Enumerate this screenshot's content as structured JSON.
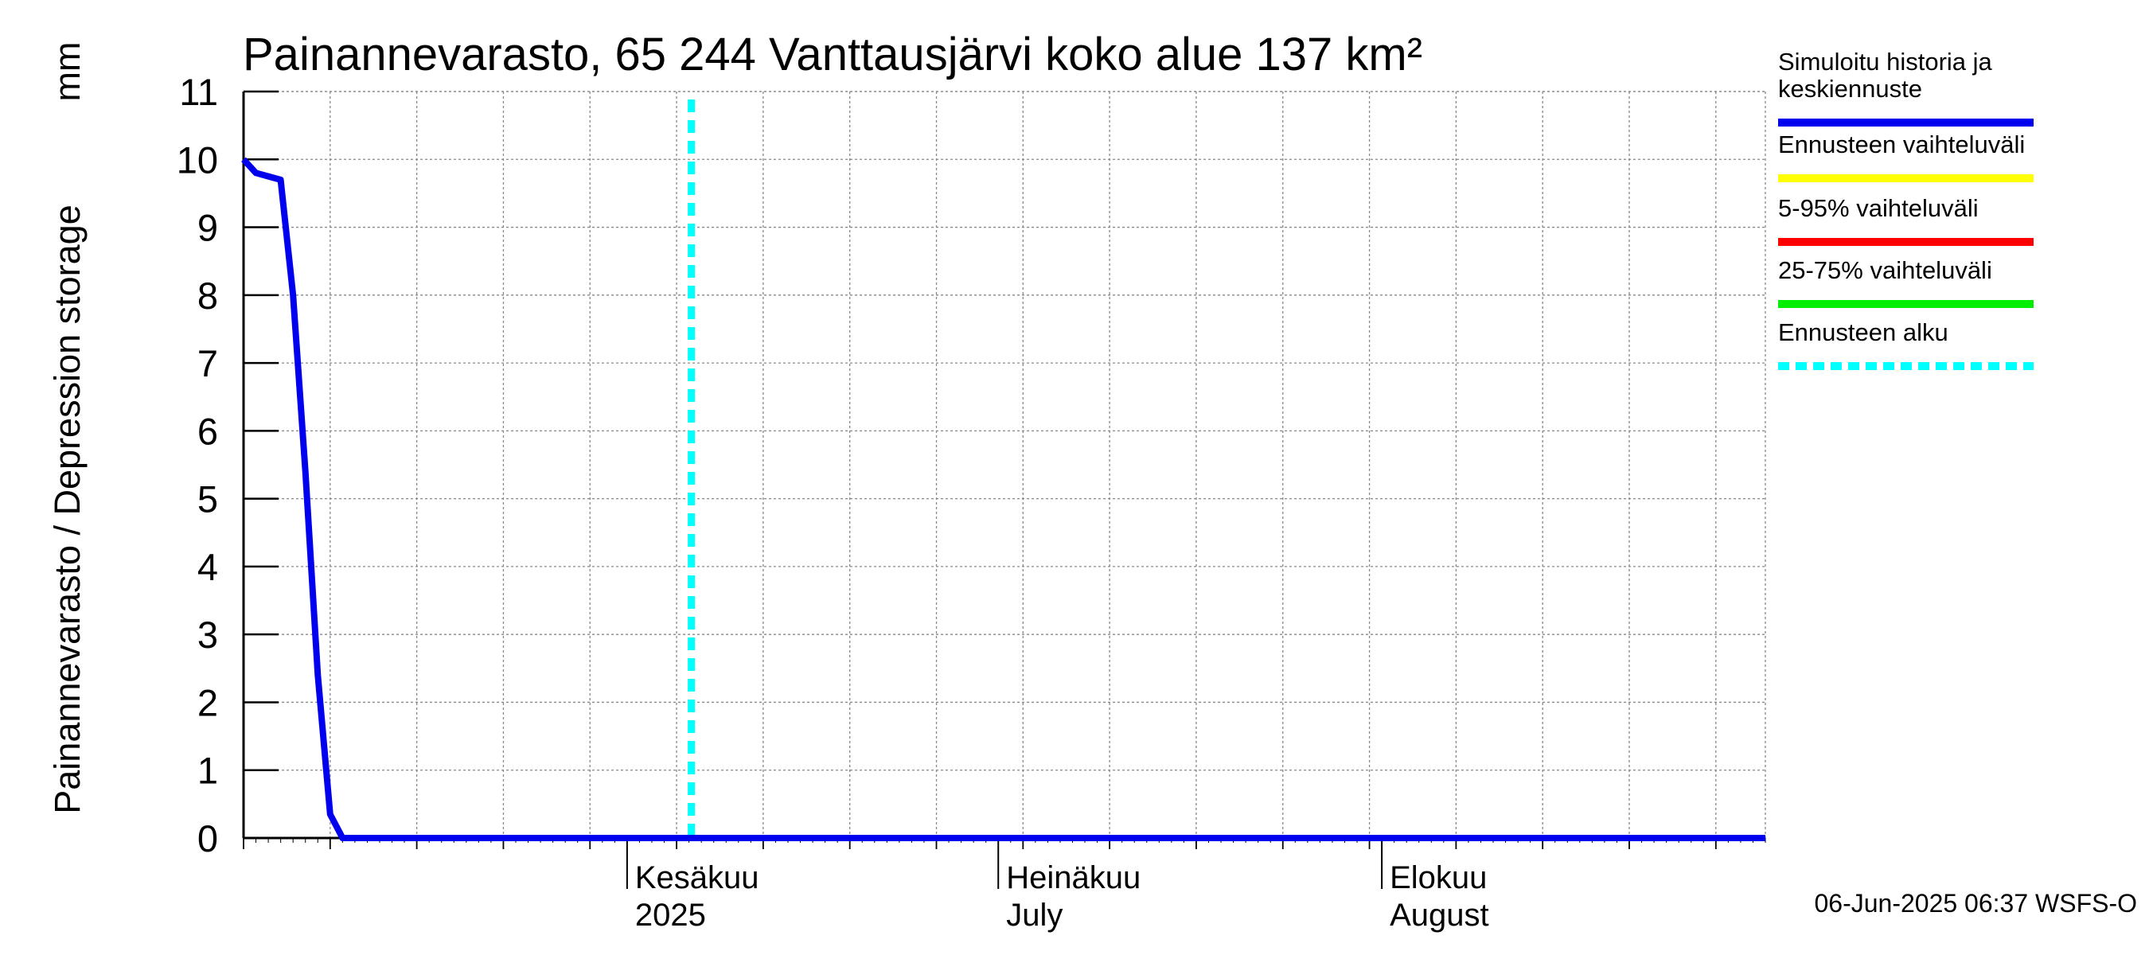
{
  "chart_data": {
    "type": "line",
    "title": "Painannevarasto, 65 244 Vanttausjärvi koko alue 137 km²",
    "ylabel": "Painannevarasto / Depression storage",
    "yunit": "mm",
    "ylim": [
      0,
      11
    ],
    "yticks": [
      "0",
      "1",
      "2",
      "3",
      "4",
      "5",
      "6",
      "7",
      "8",
      "9",
      "10",
      "11"
    ],
    "xlim": [
      "2025-05-01",
      "2025-09-01"
    ],
    "month_labels": [
      {
        "date": "2025-06-01",
        "line1": "Kesäkuu",
        "line2": "2025"
      },
      {
        "date": "2025-07-01",
        "line1": "Heinäkuu",
        "line2": "July"
      },
      {
        "date": "2025-08-01",
        "line1": "Elokuu",
        "line2": "August"
      }
    ],
    "grid": true,
    "forecast_start": "2025-06-01",
    "series": [
      {
        "name": "Simuloitu historia ja keskiennuste",
        "color": "#0000ee",
        "points": [
          [
            "2025-05-01",
            10.0
          ],
          [
            "2025-05-02",
            9.8
          ],
          [
            "2025-05-03",
            9.75
          ],
          [
            "2025-05-04",
            9.7
          ],
          [
            "2025-05-05",
            8.0
          ],
          [
            "2025-05-06",
            5.4
          ],
          [
            "2025-05-07",
            2.4
          ],
          [
            "2025-05-08",
            0.35
          ],
          [
            "2025-05-09",
            0.0
          ],
          [
            "2025-09-01",
            0.0
          ]
        ]
      }
    ],
    "legend": {
      "placement": "right",
      "entries": [
        {
          "label_lines": [
            "Simuloitu historia ja",
            "keskiennuste"
          ],
          "color": "#0000ee",
          "style": "solid"
        },
        {
          "label_lines": [
            "Ennusteen vaihteluväli"
          ],
          "color": "#ffff00",
          "style": "solid"
        },
        {
          "label_lines": [
            "5-95% vaihteluväli"
          ],
          "color": "#ff0000",
          "style": "solid"
        },
        {
          "label_lines": [
            "25-75% vaihteluväli"
          ],
          "color": "#00ee00",
          "style": "solid"
        },
        {
          "label_lines": [
            "Ennusteen alku"
          ],
          "color": "#00ffff",
          "style": "dashed"
        }
      ]
    }
  },
  "footer": "06-Jun-2025 06:37 WSFS-O"
}
